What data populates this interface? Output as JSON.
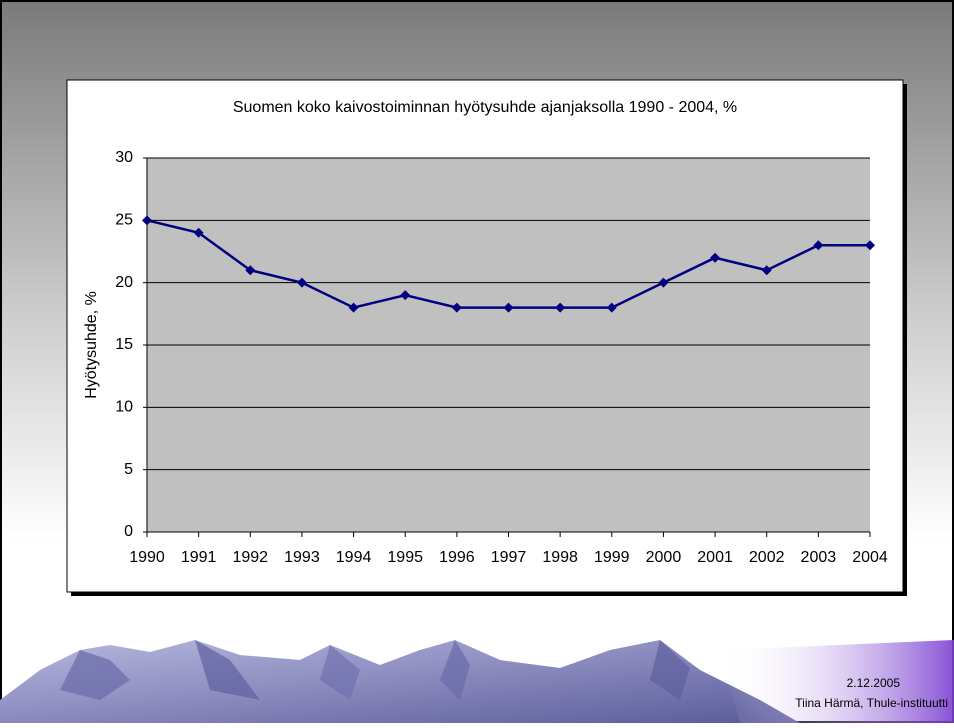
{
  "chart_data": {
    "type": "line",
    "title": "Suomen koko kaivostoiminnan hyötysuhde ajanjaksolla 1990 - 2004, %",
    "y_label": "Hyötysuhde, %",
    "categories": [
      "1990",
      "1991",
      "1992",
      "1993",
      "1994",
      "1995",
      "1996",
      "1997",
      "1998",
      "1999",
      "2000",
      "2001",
      "2002",
      "2003",
      "2004"
    ],
    "values": [
      25,
      24,
      21,
      20,
      18,
      19,
      18,
      18,
      18,
      18,
      20,
      22,
      21,
      23,
      23
    ],
    "color": "#000080",
    "ylim": [
      0,
      30
    ],
    "yticks": [
      0,
      5,
      10,
      15,
      20,
      25,
      30
    ],
    "grid": true
  },
  "footer": {
    "date": "2.12.2005",
    "author": "Tiina Härmä, Thule-instituutti"
  }
}
